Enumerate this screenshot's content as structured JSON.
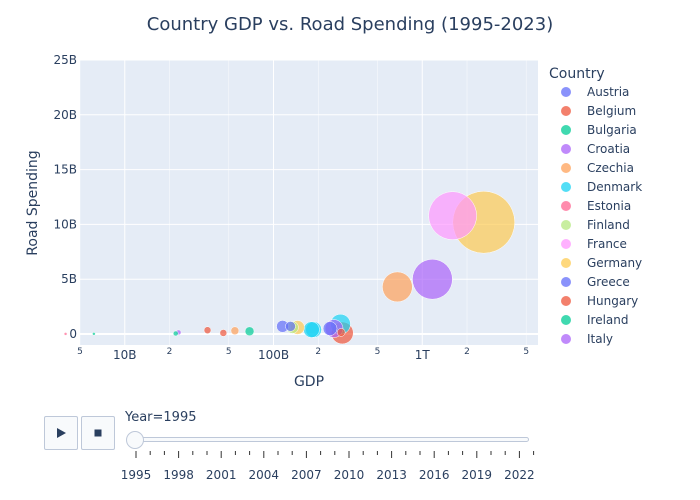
{
  "chart_data": {
    "type": "scatter",
    "title": "Country GDP vs. Road Spending (1995-2023)",
    "xlabel": "GDP",
    "ylabel": "Road Spending",
    "x_scale": "log",
    "xlim": [
      5000000000,
      6000000000000
    ],
    "ylim": [
      -1000000000,
      25000000000
    ],
    "x_ticks": [
      {
        "value": 5000000000,
        "label": "5",
        "major": false
      },
      {
        "value": 10000000000,
        "label": "10B",
        "major": true
      },
      {
        "value": 20000000000,
        "label": "2",
        "major": false
      },
      {
        "value": 50000000000,
        "label": "5",
        "major": false
      },
      {
        "value": 100000000000,
        "label": "100B",
        "major": true
      },
      {
        "value": 200000000000,
        "label": "2",
        "major": false
      },
      {
        "value": 500000000000,
        "label": "5",
        "major": false
      },
      {
        "value": 1000000000000,
        "label": "1T",
        "major": true
      },
      {
        "value": 2000000000000,
        "label": "2",
        "major": false
      },
      {
        "value": 5000000000000,
        "label": "5",
        "major": false
      }
    ],
    "y_ticks": [
      {
        "value": 0,
        "label": "0"
      },
      {
        "value": 5000000000,
        "label": "5B"
      },
      {
        "value": 10000000000,
        "label": "10B"
      },
      {
        "value": 15000000000,
        "label": "15B"
      },
      {
        "value": 20000000000,
        "label": "20B"
      },
      {
        "value": 25000000000,
        "label": "25B"
      }
    ],
    "grid": true,
    "legend": {
      "title": "Country",
      "position": "right"
    },
    "series": [
      {
        "name": "Austria",
        "color": "#636efa",
        "x": 240000000000,
        "y": 500000000
      },
      {
        "name": "Belgium",
        "color": "#EF553B",
        "x": 285000000000,
        "y": 150000000
      },
      {
        "name": "Bulgaria",
        "color": "#00cc96",
        "x": 6200000000,
        "y": 20000000
      },
      {
        "name": "Croatia",
        "color": "#ab63fa",
        "x": 23000000000,
        "y": 150000000
      },
      {
        "name": "Czechia",
        "color": "#FFA15A",
        "x": 55000000000,
        "y": 300000000
      },
      {
        "name": "Denmark",
        "color": "#19d3f3",
        "x": 186000000000,
        "y": 400000000
      },
      {
        "name": "Estonia",
        "color": "#FF6692",
        "x": 4000000000,
        "y": 10000000
      },
      {
        "name": "Finland",
        "color": "#B6E880",
        "x": 134000000000,
        "y": 600000000
      },
      {
        "name": "France",
        "color": "#FF97FF",
        "x": 1600000000000,
        "y": 10800000000
      },
      {
        "name": "Germany",
        "color": "#FECB52",
        "x": 2590000000000,
        "y": 10200000000
      },
      {
        "name": "Greece",
        "color": "#636efa",
        "x": 130000000000,
        "y": 700000000
      },
      {
        "name": "Hungary",
        "color": "#EF553B",
        "x": 46000000000,
        "y": 100000000
      },
      {
        "name": "Ireland",
        "color": "#00cc96",
        "x": 69000000000,
        "y": 250000000
      },
      {
        "name": "Italy",
        "color": "#ab63fa",
        "x": 1170000000000,
        "y": 5000000000
      }
    ],
    "extra_points": [
      {
        "color": "#EF553B",
        "x": 36000000000,
        "y": 350000000,
        "r": 3.5
      },
      {
        "color": "#00cc96",
        "x": 22000000000,
        "y": 50000000,
        "r": 2.5
      },
      {
        "color": "#FFA15A",
        "x": 680000000000,
        "y": 4300000000,
        "r": 15
      },
      {
        "color": "#ab63fa",
        "x": 255000000000,
        "y": 500000000,
        "r": 9
      },
      {
        "color": "#EF553B",
        "x": 290000000000,
        "y": 100000000,
        "r": 11
      },
      {
        "color": "#19d3f3",
        "x": 180000000000,
        "y": 400000000,
        "r": 8
      },
      {
        "color": "#19d3f3",
        "x": 282000000000,
        "y": 900000000,
        "r": 10
      },
      {
        "color": "#FECB52",
        "x": 145000000000,
        "y": 600000000,
        "r": 7
      },
      {
        "color": "#636efa",
        "x": 115000000000,
        "y": 700000000,
        "r": 6
      }
    ],
    "sizes": {
      "Austria": 7,
      "Belgium": 4,
      "Bulgaria": 1.5,
      "Croatia": 2.5,
      "Czechia": 4,
      "Denmark": 8,
      "Estonia": 1.5,
      "Finland": 6,
      "France": 24,
      "Germany": 31,
      "Greece": 5,
      "Hungary": 3.5,
      "Ireland": 4.5,
      "Italy": 20
    }
  },
  "slider": {
    "current_label": "Year=1995",
    "ticks": [
      "1995",
      "1998",
      "2001",
      "2004",
      "2007",
      "2010",
      "2013",
      "2016",
      "2019",
      "2022"
    ]
  }
}
